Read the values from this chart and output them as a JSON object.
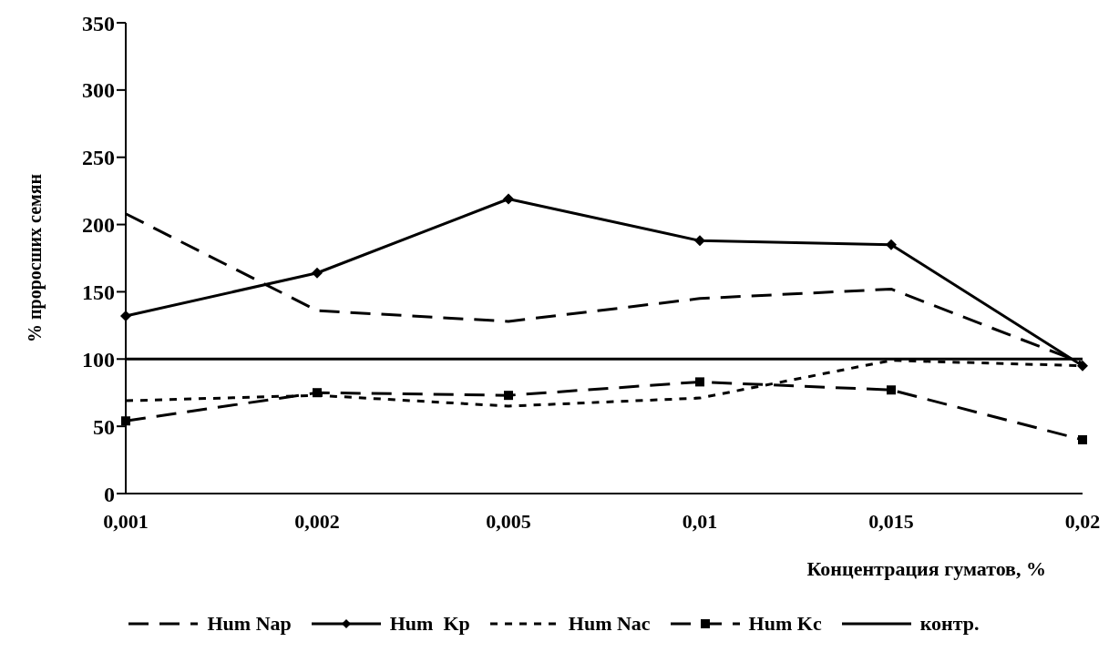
{
  "chart_data": {
    "type": "line",
    "xlabel": "Концентрация гуматов, %",
    "ylabel": "% проросших семян",
    "categories": [
      "0,001",
      "0,002",
      "0,005",
      "0,01",
      "0,015",
      "0,02"
    ],
    "ylim": [
      0,
      350
    ],
    "yticks": [
      0,
      50,
      100,
      150,
      200,
      250,
      300,
      350
    ],
    "grid": false,
    "legend": "bottom",
    "series": [
      {
        "name": "Hum Nap",
        "color": "#000000",
        "line_style": "dashed",
        "marker": "none",
        "values": [
          208,
          136,
          128,
          145,
          152,
          97
        ]
      },
      {
        "name": "Hum  Kp",
        "color": "#000000",
        "line_style": "solid",
        "marker": "diamond",
        "values": [
          132,
          164,
          219,
          188,
          185,
          95
        ]
      },
      {
        "name": "Hum Nac",
        "color": "#000000",
        "line_style": "dotted",
        "marker": "none",
        "values": [
          69,
          73,
          65,
          71,
          99,
          95
        ]
      },
      {
        "name": "Hum Kc",
        "color": "#000000",
        "line_style": "dashed",
        "marker": "square",
        "values": [
          54,
          75,
          73,
          83,
          77,
          40
        ]
      },
      {
        "name": "контр.",
        "color": "#000000",
        "line_style": "solid",
        "marker": "none",
        "values": [
          100,
          100,
          100,
          100,
          100,
          100
        ]
      }
    ]
  }
}
